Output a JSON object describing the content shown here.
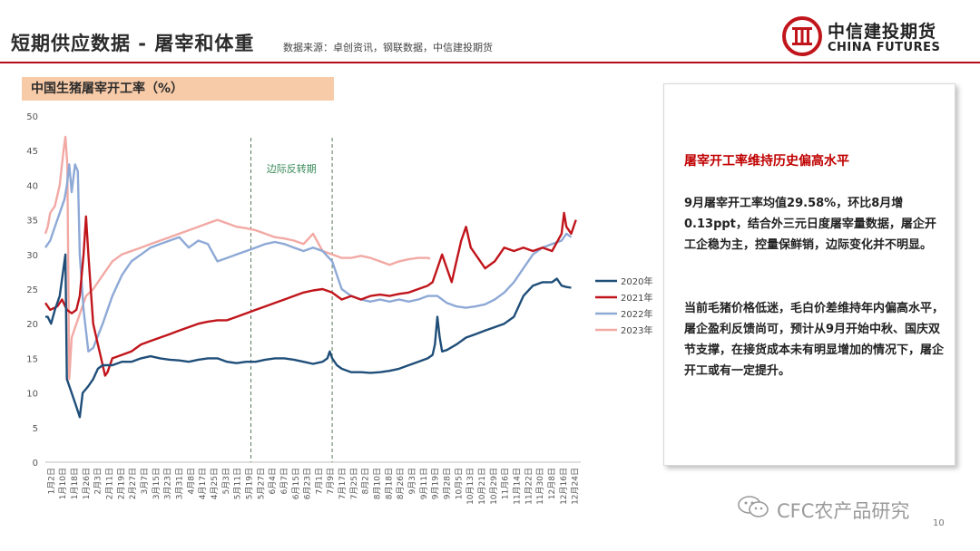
{
  "header": {
    "title": "短期供应数据 - 屠宰和体重",
    "source": "数据来源：卓创资讯，钢联数据，中信建投期货"
  },
  "logo": {
    "cn": "中信建投期货",
    "en": "CHINA FUTURES"
  },
  "colors": {
    "accent": "#b40c1c",
    "s2020": "#1f4e79",
    "s2021": "#c0151b",
    "s2022": "#8ea9d6",
    "s2023": "#f2a9a4",
    "title_bg": "#f8cba8"
  },
  "chart_data": {
    "type": "line",
    "title": "中国生猪屠宰开工率（%）",
    "ylim": [
      0,
      50
    ],
    "yticks": [
      0,
      5,
      10,
      15,
      20,
      25,
      30,
      35,
      40,
      45,
      50
    ],
    "xlabels": [
      "1月2日",
      "1月10日",
      "1月18日",
      "1月26日",
      "2月3日",
      "2月11日",
      "2月19日",
      "2月27日",
      "3月7日",
      "3月15日",
      "3月23日",
      "3月31日",
      "4月8日",
      "4月17日",
      "4月25日",
      "5月3日",
      "5月11日",
      "5月19日",
      "5月27日",
      "6月4日",
      "6月7日",
      "6月15日",
      "6月23日",
      "7月1日",
      "7月9日",
      "7月17日",
      "7月25日",
      "8月2日",
      "8月10日",
      "8月18日",
      "8月26日",
      "9月3日",
      "9月11日",
      "9月19日",
      "9月28日",
      "10月5日",
      "10月13日",
      "10月21日",
      "10月29日",
      "11月6日",
      "11月14日",
      "11月22日",
      "11月30日",
      "12月8日",
      "12月16日",
      "12月24日"
    ],
    "annotation": "边际反转期",
    "annotation_range": [
      4.3,
      6.0
    ],
    "series": [
      {
        "name": "2020年",
        "points": [
          [
            0,
            21
          ],
          [
            0.05,
            21
          ],
          [
            0.12,
            20
          ],
          [
            0.2,
            22
          ],
          [
            0.3,
            24
          ],
          [
            0.38,
            28
          ],
          [
            0.42,
            30
          ],
          [
            0.45,
            12
          ],
          [
            0.55,
            10
          ],
          [
            0.65,
            8
          ],
          [
            0.72,
            6.5
          ],
          [
            0.78,
            10
          ],
          [
            0.9,
            11
          ],
          [
            1,
            12
          ],
          [
            1.1,
            13.5
          ],
          [
            1.2,
            14
          ],
          [
            1.4,
            14
          ],
          [
            1.6,
            14.5
          ],
          [
            1.8,
            14.5
          ],
          [
            2,
            15
          ],
          [
            2.2,
            15.3
          ],
          [
            2.4,
            15
          ],
          [
            2.6,
            14.8
          ],
          [
            2.8,
            14.7
          ],
          [
            3,
            14.5
          ],
          [
            3.2,
            14.8
          ],
          [
            3.4,
            15
          ],
          [
            3.6,
            15
          ],
          [
            3.8,
            14.5
          ],
          [
            4,
            14.3
          ],
          [
            4.2,
            14.5
          ],
          [
            4.4,
            14.5
          ],
          [
            4.6,
            14.8
          ],
          [
            4.8,
            15
          ],
          [
            5,
            15
          ],
          [
            5.2,
            14.8
          ],
          [
            5.4,
            14.5
          ],
          [
            5.6,
            14.2
          ],
          [
            5.8,
            14.5
          ],
          [
            5.9,
            15
          ],
          [
            5.95,
            16
          ],
          [
            6,
            15
          ],
          [
            6.1,
            14
          ],
          [
            6.2,
            13.5
          ],
          [
            6.4,
            13
          ],
          [
            6.6,
            13
          ],
          [
            6.8,
            12.9
          ],
          [
            7,
            13
          ],
          [
            7.2,
            13.2
          ],
          [
            7.4,
            13.5
          ],
          [
            7.6,
            14
          ],
          [
            7.8,
            14.5
          ],
          [
            8,
            15
          ],
          [
            8.1,
            15.5
          ],
          [
            8.15,
            17
          ],
          [
            8.2,
            21
          ],
          [
            8.25,
            18
          ],
          [
            8.3,
            16
          ],
          [
            8.4,
            16.2
          ],
          [
            8.6,
            17
          ],
          [
            8.8,
            18
          ],
          [
            9,
            18.5
          ],
          [
            9.2,
            19
          ],
          [
            9.4,
            19.5
          ],
          [
            9.6,
            20
          ],
          [
            9.8,
            21
          ],
          [
            10,
            24
          ],
          [
            10.2,
            25.5
          ],
          [
            10.4,
            26
          ],
          [
            10.6,
            26
          ],
          [
            10.7,
            26.5
          ],
          [
            10.8,
            25.5
          ],
          [
            10.9,
            25.3
          ],
          [
            11,
            25.2
          ]
        ]
      },
      {
        "name": "2021年",
        "points": [
          [
            0,
            23
          ],
          [
            0.1,
            22
          ],
          [
            0.25,
            22.5
          ],
          [
            0.35,
            23.5
          ],
          [
            0.45,
            22
          ],
          [
            0.55,
            21.5
          ],
          [
            0.65,
            22
          ],
          [
            0.72,
            24
          ],
          [
            0.8,
            30
          ],
          [
            0.85,
            35.5
          ],
          [
            0.9,
            30
          ],
          [
            0.95,
            25
          ],
          [
            1,
            20
          ],
          [
            1.1,
            17
          ],
          [
            1.2,
            14
          ],
          [
            1.25,
            12.5
          ],
          [
            1.3,
            13
          ],
          [
            1.4,
            15
          ],
          [
            1.6,
            15.5
          ],
          [
            1.8,
            16
          ],
          [
            2,
            17
          ],
          [
            2.2,
            17.5
          ],
          [
            2.4,
            18
          ],
          [
            2.6,
            18.5
          ],
          [
            2.8,
            19
          ],
          [
            3,
            19.5
          ],
          [
            3.2,
            20
          ],
          [
            3.4,
            20.3
          ],
          [
            3.6,
            20.5
          ],
          [
            3.8,
            20.5
          ],
          [
            4,
            21
          ],
          [
            4.2,
            21.5
          ],
          [
            4.4,
            22
          ],
          [
            4.6,
            22.5
          ],
          [
            4.8,
            23
          ],
          [
            5,
            23.5
          ],
          [
            5.2,
            24
          ],
          [
            5.4,
            24.5
          ],
          [
            5.6,
            24.8
          ],
          [
            5.8,
            25
          ],
          [
            6,
            24.5
          ],
          [
            6.2,
            23.5
          ],
          [
            6.4,
            24
          ],
          [
            6.6,
            23.5
          ],
          [
            6.8,
            24
          ],
          [
            7,
            24.2
          ],
          [
            7.2,
            24
          ],
          [
            7.4,
            24.3
          ],
          [
            7.6,
            24.5
          ],
          [
            7.8,
            25
          ],
          [
            8,
            25.5
          ],
          [
            8.1,
            26
          ],
          [
            8.2,
            28
          ],
          [
            8.3,
            30
          ],
          [
            8.4,
            28
          ],
          [
            8.5,
            26
          ],
          [
            8.6,
            29
          ],
          [
            8.7,
            32
          ],
          [
            8.8,
            34
          ],
          [
            8.9,
            31
          ],
          [
            9,
            30
          ],
          [
            9.2,
            28
          ],
          [
            9.4,
            29
          ],
          [
            9.6,
            31
          ],
          [
            9.8,
            30.5
          ],
          [
            10,
            31
          ],
          [
            10.2,
            30.5
          ],
          [
            10.4,
            31
          ],
          [
            10.6,
            30.5
          ],
          [
            10.8,
            33
          ],
          [
            10.85,
            36
          ],
          [
            10.9,
            34
          ],
          [
            11,
            33
          ],
          [
            11.05,
            34
          ],
          [
            11.1,
            35
          ]
        ]
      },
      {
        "name": "2022年",
        "points": [
          [
            0,
            31
          ],
          [
            0.1,
            32
          ],
          [
            0.2,
            34
          ],
          [
            0.3,
            36
          ],
          [
            0.4,
            38
          ],
          [
            0.45,
            40
          ],
          [
            0.5,
            43
          ],
          [
            0.55,
            39
          ],
          [
            0.62,
            43
          ],
          [
            0.68,
            42
          ],
          [
            0.72,
            30
          ],
          [
            0.8,
            22
          ],
          [
            0.9,
            16
          ],
          [
            1,
            16.5
          ],
          [
            1.2,
            20
          ],
          [
            1.4,
            24
          ],
          [
            1.6,
            27
          ],
          [
            1.8,
            29
          ],
          [
            2,
            30
          ],
          [
            2.2,
            31
          ],
          [
            2.4,
            31.5
          ],
          [
            2.6,
            32
          ],
          [
            2.8,
            32.5
          ],
          [
            3,
            31
          ],
          [
            3.2,
            32
          ],
          [
            3.4,
            31.5
          ],
          [
            3.6,
            29
          ],
          [
            3.8,
            29.5
          ],
          [
            4,
            30
          ],
          [
            4.2,
            30.5
          ],
          [
            4.4,
            31
          ],
          [
            4.6,
            31.5
          ],
          [
            4.8,
            31.8
          ],
          [
            5,
            31.5
          ],
          [
            5.2,
            31
          ],
          [
            5.4,
            30.5
          ],
          [
            5.6,
            31
          ],
          [
            5.8,
            30.5
          ],
          [
            6,
            29
          ],
          [
            6.2,
            25
          ],
          [
            6.4,
            24
          ],
          [
            6.6,
            23.5
          ],
          [
            6.8,
            23.2
          ],
          [
            7,
            23.5
          ],
          [
            7.2,
            23.2
          ],
          [
            7.4,
            23.5
          ],
          [
            7.6,
            23.2
          ],
          [
            7.8,
            23.5
          ],
          [
            8,
            24
          ],
          [
            8.2,
            24
          ],
          [
            8.4,
            23
          ],
          [
            8.6,
            22.5
          ],
          [
            8.8,
            22.3
          ],
          [
            9,
            22.5
          ],
          [
            9.2,
            22.8
          ],
          [
            9.4,
            23.5
          ],
          [
            9.6,
            24.5
          ],
          [
            9.8,
            26
          ],
          [
            10,
            28
          ],
          [
            10.2,
            30
          ],
          [
            10.4,
            31
          ],
          [
            10.6,
            31.5
          ],
          [
            10.8,
            32
          ],
          [
            10.9,
            33
          ],
          [
            11,
            32.5
          ]
        ]
      },
      {
        "name": "2023年",
        "points": [
          [
            0,
            33
          ],
          [
            0.05,
            34
          ],
          [
            0.1,
            36
          ],
          [
            0.2,
            37
          ],
          [
            0.3,
            40
          ],
          [
            0.38,
            45
          ],
          [
            0.42,
            47
          ],
          [
            0.46,
            43
          ],
          [
            0.5,
            12
          ],
          [
            0.55,
            18
          ],
          [
            0.65,
            20
          ],
          [
            0.75,
            22
          ],
          [
            0.85,
            24
          ],
          [
            1,
            25
          ],
          [
            1.2,
            27
          ],
          [
            1.4,
            29
          ],
          [
            1.6,
            30
          ],
          [
            1.8,
            30.5
          ],
          [
            2,
            31
          ],
          [
            2.2,
            31.5
          ],
          [
            2.4,
            32
          ],
          [
            2.6,
            32.5
          ],
          [
            2.8,
            33
          ],
          [
            3,
            33.5
          ],
          [
            3.2,
            34
          ],
          [
            3.4,
            34.5
          ],
          [
            3.6,
            35
          ],
          [
            3.8,
            34.5
          ],
          [
            4,
            34
          ],
          [
            4.2,
            33.8
          ],
          [
            4.4,
            33.5
          ],
          [
            4.6,
            33
          ],
          [
            4.8,
            32.5
          ],
          [
            5,
            32.3
          ],
          [
            5.2,
            32
          ],
          [
            5.4,
            31.5
          ],
          [
            5.6,
            33
          ],
          [
            5.8,
            30.5
          ],
          [
            6,
            30
          ],
          [
            6.2,
            29.5
          ],
          [
            6.4,
            29.5
          ],
          [
            6.6,
            29.8
          ],
          [
            6.8,
            29.5
          ],
          [
            7,
            29
          ],
          [
            7.2,
            28.5
          ],
          [
            7.4,
            29
          ],
          [
            7.6,
            29.3
          ],
          [
            7.8,
            29.5
          ],
          [
            8,
            29.5
          ],
          [
            8.05,
            29.4
          ]
        ]
      }
    ]
  },
  "textbox": {
    "heading": "屠宰开工率维持历史偏高水平",
    "para1": "9月屠宰开工率均值29.58%，环比8月增0.13ppt，结合外三元日度屠宰量数据，屠企开工企稳为主，控量保鲜销，边际变化并不明显。",
    "para2": "当前毛猪价格低迷，毛白价差维持年内偏高水平，屠企盈利反馈尚可，预计从9月开始中秋、国庆双节支撑，在接货成本未有明显增加的情况下，屠企开工或有一定提升。"
  },
  "watermark": "CFC农产品研究",
  "page_number": "10"
}
